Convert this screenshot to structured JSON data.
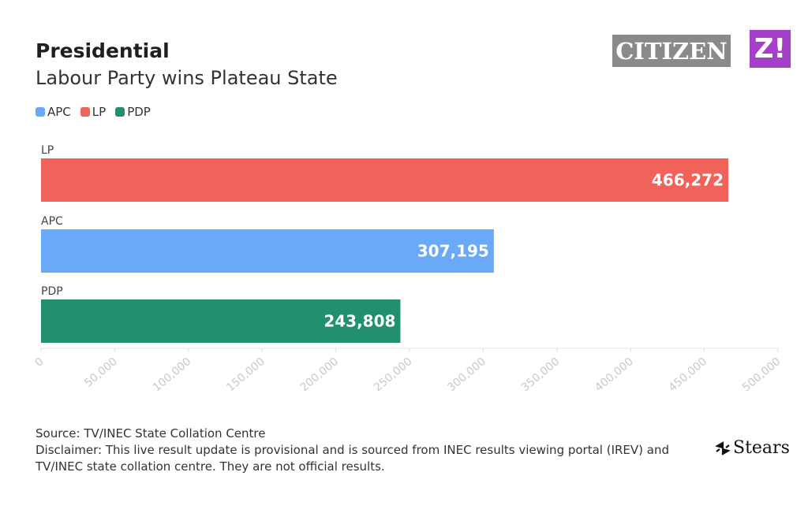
{
  "header": {
    "title": "Presidential",
    "subtitle": "Labour Party wins Plateau State"
  },
  "logos": {
    "citizen": "CITIZEN",
    "z": "Z!",
    "stears": "Stears"
  },
  "legend": [
    {
      "label": "APC",
      "color": "#6aa9f7"
    },
    {
      "label": "LP",
      "color": "#f0625a"
    },
    {
      "label": "PDP",
      "color": "#22906e"
    }
  ],
  "chart_data": {
    "type": "bar",
    "orientation": "horizontal",
    "categories": [
      "LP",
      "APC",
      "PDP"
    ],
    "values": [
      466272,
      307195,
      243808
    ],
    "value_labels": [
      "466,272",
      "307,195",
      "243,808"
    ],
    "colors": [
      "#f0625a",
      "#6aa9f7",
      "#22906e"
    ],
    "xlim": [
      0,
      500000
    ],
    "xticks": [
      0,
      50000,
      100000,
      150000,
      200000,
      250000,
      300000,
      350000,
      400000,
      450000,
      500000
    ],
    "xtick_labels": [
      "0",
      "50,000",
      "100,000",
      "150,000",
      "200,000",
      "250,000",
      "300,000",
      "350,000",
      "400,000",
      "450,000",
      "500,000"
    ],
    "grid": false,
    "legend_position": "top-left"
  },
  "footer": {
    "source": "Source: TV/INEC State Collation Centre",
    "disclaimer": "Disclaimer: This live result update is provisional and is sourced from INEC results viewing portal (IREV) and TV/INEC state collation centre. They are not official results."
  }
}
